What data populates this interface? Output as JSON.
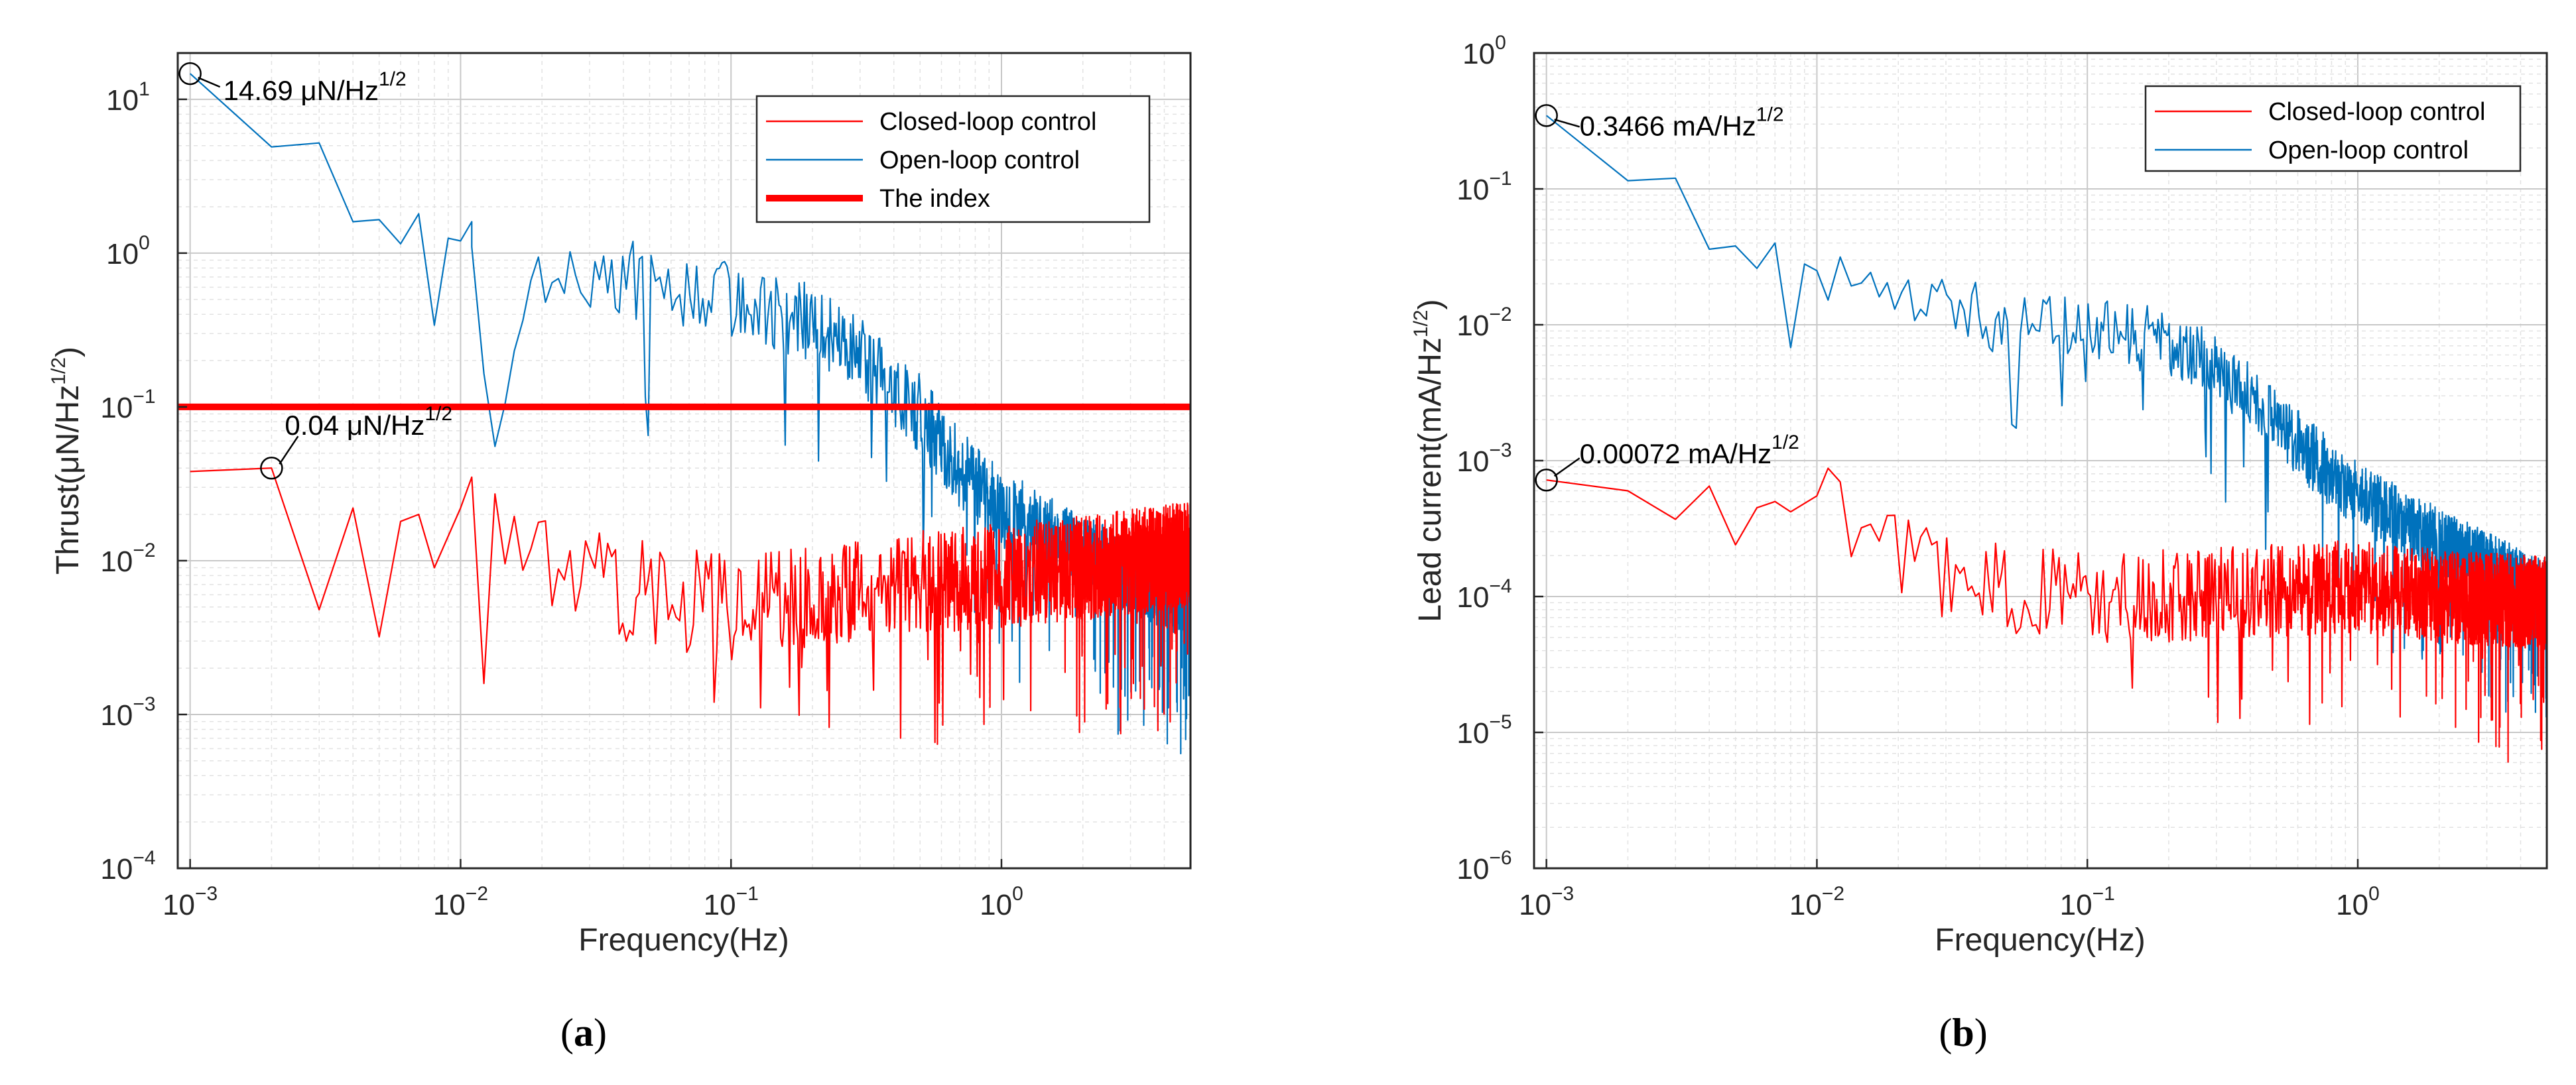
{
  "figure": {
    "panels": [
      {
        "label_open": "(",
        "label_letter": "a",
        "label_close": ")"
      },
      {
        "label_open": "(",
        "label_letter": "b",
        "label_close": ")"
      }
    ]
  },
  "chart_data": [
    {
      "type": "line",
      "x_scale": "log",
      "y_scale": "log",
      "xlabel": "Frequency(Hz)",
      "ylabel_main": "Thrust(μN/Hz",
      "ylabel_sup": "1/2",
      "ylabel_close": ")",
      "xlim": [
        0.0009,
        5
      ],
      "ylim": [
        0.0001,
        20
      ],
      "x_ticks": [
        {
          "value": 0.001,
          "base": "10",
          "exp": "−3"
        },
        {
          "value": 0.01,
          "base": "10",
          "exp": "−2"
        },
        {
          "value": 0.1,
          "base": "10",
          "exp": "−1"
        },
        {
          "value": 1,
          "base": "10",
          "exp": "0"
        }
      ],
      "y_ticks": [
        {
          "value": 0.0001,
          "base": "10",
          "exp": "−4"
        },
        {
          "value": 0.001,
          "base": "10",
          "exp": "−3"
        },
        {
          "value": 0.01,
          "base": "10",
          "exp": "−2"
        },
        {
          "value": 0.1,
          "base": "10",
          "exp": "−1"
        },
        {
          "value": 1,
          "base": "10",
          "exp": "0"
        },
        {
          "value": 10,
          "base": "10",
          "exp": "1"
        }
      ],
      "grid": true,
      "legend_position": "top-right",
      "legend": [
        {
          "name": "Closed-loop control",
          "color": "#ff0000",
          "style": "thin"
        },
        {
          "name": "Open-loop control",
          "color": "#0072bd",
          "style": "thin"
        },
        {
          "name": "The index",
          "color": "#ff0000",
          "style": "thick"
        }
      ],
      "index_line": {
        "name": "The index",
        "value": 0.1,
        "color": "#ff0000"
      },
      "series": [
        {
          "name": "Open-loop control",
          "color": "#0072bd",
          "anchors": [
            [
              0.001,
              14.69
            ],
            [
              0.002,
              4.9
            ],
            [
              0.003,
              5.2
            ],
            [
              0.004,
              1.6
            ],
            [
              0.005,
              1.65
            ],
            [
              0.006,
              1.15
            ],
            [
              0.007,
              1.8
            ],
            [
              0.008,
              0.34
            ],
            [
              0.009,
              1.25
            ],
            [
              0.01,
              1.2
            ],
            [
              0.011,
              1.6
            ],
            [
              0.013,
              0.04
            ],
            [
              0.02,
              0.8
            ],
            [
              0.05,
              0.65
            ],
            [
              0.1,
              0.5
            ],
            [
              0.2,
              0.35
            ],
            [
              0.3,
              0.22
            ],
            [
              0.5,
              0.09
            ],
            [
              0.7,
              0.04
            ],
            [
              1,
              0.022
            ],
            [
              2,
              0.011
            ],
            [
              5,
              0.0055
            ]
          ],
          "noise_range": [
            0.6,
            1.8
          ]
        },
        {
          "name": "Closed-loop control",
          "color": "#ff0000",
          "anchors": [
            [
              0.001,
              0.038
            ],
            [
              0.002,
              0.04
            ],
            [
              0.003,
              0.0048
            ],
            [
              0.004,
              0.022
            ],
            [
              0.005,
              0.0032
            ],
            [
              0.006,
              0.018
            ],
            [
              0.007,
              0.02
            ],
            [
              0.008,
              0.009
            ],
            [
              0.01,
              0.022
            ],
            [
              0.02,
              0.0085
            ],
            [
              0.05,
              0.006
            ],
            [
              0.1,
              0.005
            ],
            [
              0.3,
              0.0062
            ],
            [
              0.5,
              0.0072
            ],
            [
              1,
              0.008
            ],
            [
              2,
              0.009
            ],
            [
              5,
              0.011
            ]
          ],
          "noise_range": [
            0.8,
            2.2
          ]
        }
      ],
      "annotations": [
        {
          "x": 0.001,
          "y": 14.69,
          "text": "14.69 μN/Hz",
          "sup": "1/2"
        },
        {
          "x": 0.002,
          "y": 0.04,
          "text": "0.04 μN/Hz",
          "sup": "1/2"
        }
      ]
    },
    {
      "type": "line",
      "x_scale": "log",
      "y_scale": "log",
      "xlabel": "Frequency(Hz)",
      "ylabel_main": "Lead current(mA/Hz",
      "ylabel_sup": "1/2",
      "ylabel_close": ")",
      "xlim": [
        0.0009,
        5
      ],
      "ylim": [
        1e-06,
        1
      ],
      "x_ticks": [
        {
          "value": 0.001,
          "base": "10",
          "exp": "−3"
        },
        {
          "value": 0.01,
          "base": "10",
          "exp": "−2"
        },
        {
          "value": 0.1,
          "base": "10",
          "exp": "−1"
        },
        {
          "value": 1,
          "base": "10",
          "exp": "0"
        }
      ],
      "y_ticks": [
        {
          "value": 1e-06,
          "base": "10",
          "exp": "−6"
        },
        {
          "value": 1e-05,
          "base": "10",
          "exp": "−5"
        },
        {
          "value": 0.0001,
          "base": "10",
          "exp": "−4"
        },
        {
          "value": 0.001,
          "base": "10",
          "exp": "−3"
        },
        {
          "value": 0.01,
          "base": "10",
          "exp": "−2"
        },
        {
          "value": 0.1,
          "base": "10",
          "exp": "−1"
        },
        {
          "value": 1,
          "base": "10",
          "exp": "0"
        }
      ],
      "grid": true,
      "legend_position": "top-right",
      "legend": [
        {
          "name": "Closed-loop control",
          "color": "#ff0000",
          "style": "thin"
        },
        {
          "name": "Open-loop control",
          "color": "#0072bd",
          "style": "thin"
        }
      ],
      "series": [
        {
          "name": "Open-loop control",
          "color": "#0072bd",
          "anchors": [
            [
              0.001,
              0.3466
            ],
            [
              0.002,
              0.115
            ],
            [
              0.003,
              0.12
            ],
            [
              0.004,
              0.036
            ],
            [
              0.005,
              0.038
            ],
            [
              0.006,
              0.026
            ],
            [
              0.007,
              0.04
            ],
            [
              0.008,
              0.0068
            ],
            [
              0.009,
              0.028
            ],
            [
              0.01,
              0.025
            ],
            [
              0.02,
              0.013
            ],
            [
              0.05,
              0.011
            ],
            [
              0.1,
              0.01
            ],
            [
              0.2,
              0.007
            ],
            [
              0.3,
              0.005
            ],
            [
              0.5,
              0.002
            ],
            [
              0.7,
              0.001
            ],
            [
              1,
              0.00055
            ],
            [
              2,
              0.00025
            ],
            [
              5,
              0.0001
            ]
          ],
          "noise_range": [
            0.6,
            1.8
          ]
        },
        {
          "name": "Closed-loop control",
          "color": "#ff0000",
          "anchors": [
            [
              0.001,
              0.00072
            ],
            [
              0.002,
              0.0006
            ],
            [
              0.003,
              0.00037
            ],
            [
              0.004,
              0.00065
            ],
            [
              0.005,
              0.00024
            ],
            [
              0.006,
              0.00045
            ],
            [
              0.007,
              0.0005
            ],
            [
              0.008,
              0.00042
            ],
            [
              0.01,
              0.00055
            ],
            [
              0.02,
              0.00018
            ],
            [
              0.05,
              0.00012
            ],
            [
              0.1,
              0.0001
            ],
            [
              0.3,
              0.000105
            ],
            [
              0.5,
              0.00011
            ],
            [
              1,
              0.00012
            ],
            [
              2,
              0.0001
            ],
            [
              5,
              9e-05
            ]
          ],
          "noise_range": [
            0.8,
            2.2
          ]
        }
      ],
      "annotations": [
        {
          "x": 0.001,
          "y": 0.3466,
          "text": "0.3466 mA/Hz",
          "sup": "1/2"
        },
        {
          "x": 0.001,
          "y": 0.00072,
          "text": "0.00072 mA/Hz",
          "sup": "1/2"
        }
      ]
    }
  ]
}
